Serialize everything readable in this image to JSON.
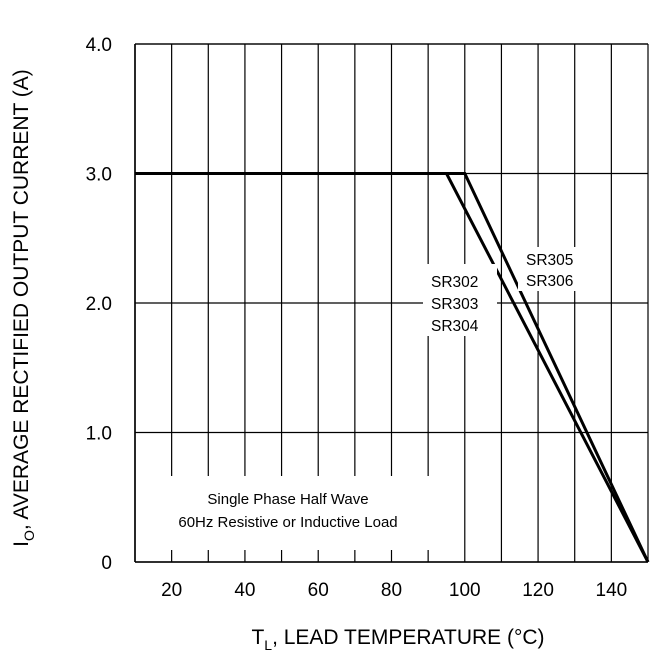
{
  "chart_data": {
    "type": "line",
    "xlabel": {
      "main": "T",
      "sub": "L",
      "rest": ", LEAD TEMPERATURE (°C)"
    },
    "ylabel": {
      "main": "I",
      "sub": "O",
      "rest": ",  AVERAGE RECTIFIED  OUTPUT CURRENT (A)"
    },
    "xlim": [
      10,
      150
    ],
    "ylim": [
      0,
      4.0
    ],
    "x_ticks": [
      {
        "value": 20,
        "label": "20"
      },
      {
        "value": 40,
        "label": "40"
      },
      {
        "value": 60,
        "label": "60"
      },
      {
        "value": 80,
        "label": "80"
      },
      {
        "value": 100,
        "label": "100"
      },
      {
        "value": 120,
        "label": "120"
      },
      {
        "value": 140,
        "label": "140"
      }
    ],
    "x_gridlines": [
      10,
      20,
      30,
      40,
      50,
      60,
      70,
      80,
      90,
      100,
      110,
      120,
      130,
      140,
      150
    ],
    "y_ticks": [
      {
        "value": 0,
        "label": "0"
      },
      {
        "value": 1.0,
        "label": "1.0"
      },
      {
        "value": 2.0,
        "label": "2.0"
      },
      {
        "value": 3.0,
        "label": "3.0"
      },
      {
        "value": 4.0,
        "label": "4.0"
      }
    ],
    "grid": true,
    "series": [
      {
        "name": "SR302 SR303 SR304",
        "x": [
          10,
          95,
          150
        ],
        "y": [
          3.0,
          3.0,
          0
        ]
      },
      {
        "name": "SR305 SR306",
        "x": [
          10,
          100,
          150
        ],
        "y": [
          3.0,
          3.0,
          0
        ]
      }
    ],
    "series_labels": [
      {
        "lines": [
          "SR302",
          "SR303",
          "SR304"
        ]
      },
      {
        "lines": [
          "SR305",
          "SR306"
        ]
      }
    ],
    "annotation": [
      "Single Phase Half Wave",
      "60Hz Resistive or Inductive Load"
    ]
  }
}
